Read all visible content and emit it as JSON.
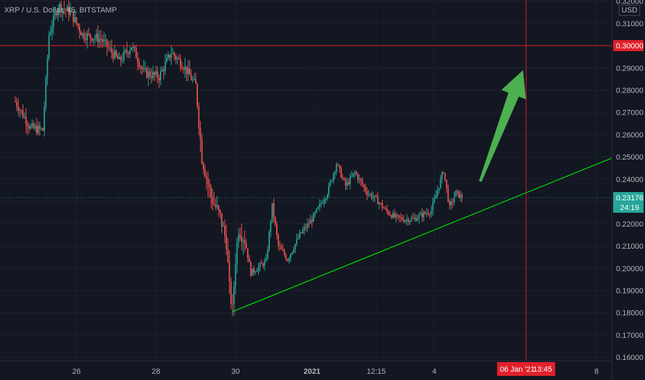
{
  "header": {
    "title": "XRP / U.S. Dollar, 45, BITSTAMP",
    "currency": "USD"
  },
  "colors": {
    "background": "#131722",
    "up": "#26a69a",
    "down": "#ef5350",
    "grid": "#1e222d",
    "support_line": "#00e600",
    "crosshair": "#e0212b",
    "arrow": "#4caf50",
    "price_tag": "#26a69a",
    "level_tag": "#e0212b"
  },
  "chart_data": {
    "type": "candlestick",
    "title": "XRP / U.S. Dollar, 45, BITSTAMP",
    "ylim": [
      0.1585,
      0.3205
    ],
    "xlim": [
      -5,
      195
    ],
    "grid": true,
    "y_ticks": [
      "0.16000",
      "0.17000",
      "0.18000",
      "0.19000",
      "0.20000",
      "0.21000",
      "0.22000",
      "0.23000",
      "0.24000",
      "0.25000",
      "0.26000",
      "0.27000",
      "0.28000",
      "0.29000",
      "0.31000",
      "0.32000"
    ],
    "y_tick_values": [
      0.16,
      0.17,
      0.18,
      0.19,
      0.2,
      0.21,
      0.22,
      0.23,
      0.24,
      0.25,
      0.26,
      0.27,
      0.28,
      0.29,
      0.31,
      0.32
    ],
    "x_ticks": [
      {
        "label": "26",
        "x": 20,
        "bold": false
      },
      {
        "label": "28",
        "x": 46,
        "bold": false
      },
      {
        "label": "30",
        "x": 72,
        "bold": false
      },
      {
        "label": "2021",
        "x": 97,
        "bold": true
      },
      {
        "label": "12:15",
        "x": 118,
        "bold": false
      },
      {
        "label": "4",
        "x": 137,
        "bold": false
      },
      {
        "label": "8",
        "x": 190,
        "bold": false
      }
    ],
    "price_path": [
      [
        0,
        0.275
      ],
      [
        5,
        0.263
      ],
      [
        9,
        0.262
      ],
      [
        11,
        0.305
      ],
      [
        14,
        0.318
      ],
      [
        18,
        0.315
      ],
      [
        22,
        0.305
      ],
      [
        28,
        0.303
      ],
      [
        34,
        0.293
      ],
      [
        38,
        0.3
      ],
      [
        42,
        0.288
      ],
      [
        47,
        0.286
      ],
      [
        51,
        0.297
      ],
      [
        55,
        0.291
      ],
      [
        59,
        0.282
      ],
      [
        61,
        0.25
      ],
      [
        64,
        0.232
      ],
      [
        67,
        0.223
      ],
      [
        69,
        0.212
      ],
      [
        70,
        0.191
      ],
      [
        71,
        0.181
      ],
      [
        72,
        0.204
      ],
      [
        73,
        0.218
      ],
      [
        75,
        0.213
      ],
      [
        77,
        0.198
      ],
      [
        79,
        0.2
      ],
      [
        82,
        0.203
      ],
      [
        84,
        0.228
      ],
      [
        86,
        0.21
      ],
      [
        89,
        0.204
      ],
      [
        93,
        0.215
      ],
      [
        97,
        0.222
      ],
      [
        102,
        0.234
      ],
      [
        105,
        0.247
      ],
      [
        108,
        0.237
      ],
      [
        111,
        0.243
      ],
      [
        115,
        0.234
      ],
      [
        118,
        0.231
      ],
      [
        121,
        0.226
      ],
      [
        124,
        0.223
      ],
      [
        127,
        0.222
      ],
      [
        130,
        0.222
      ],
      [
        133,
        0.224
      ],
      [
        136,
        0.226
      ],
      [
        140,
        0.244
      ],
      [
        142,
        0.227
      ],
      [
        144,
        0.234
      ],
      [
        146,
        0.2318
      ]
    ],
    "current_price": "0.23176",
    "countdown": "24:19",
    "horizontal_level": {
      "value": 0.3,
      "label": "0.30000"
    },
    "support_trendline": {
      "from": [
        71,
        0.1805
      ],
      "to": [
        195,
        0.2495
      ]
    },
    "crosshair": {
      "x": 167,
      "date_label": "06 Jan '21",
      "time_label": "13:45"
    },
    "arrow": {
      "from": [
        152,
        0.239
      ],
      "to": [
        166,
        0.289
      ]
    }
  }
}
